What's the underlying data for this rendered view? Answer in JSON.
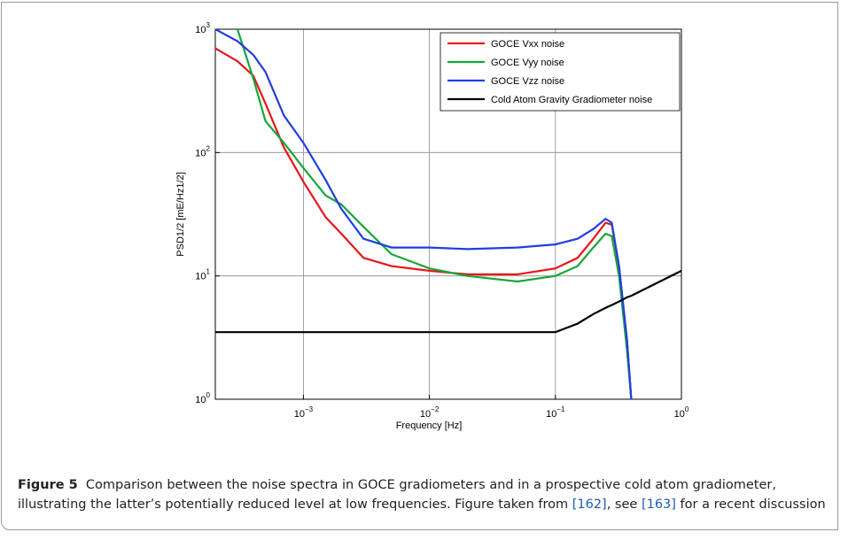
{
  "chart_data": {
    "type": "line",
    "x_label": "Frequency [Hz]",
    "y_label": "PSD1/2 [mE/Hz1/2]",
    "log_x": true,
    "log_y": true,
    "grid": true,
    "legend": "upper right",
    "xlim": [
      0.0002,
      1
    ],
    "ylim": [
      1,
      1000
    ],
    "xticks": [
      {
        "value": 0.001,
        "label": "10",
        "exponent": "−3"
      },
      {
        "value": 0.01,
        "label": "10",
        "exponent": "−2"
      },
      {
        "value": 0.1,
        "label": "10",
        "exponent": "−1"
      },
      {
        "value": 1,
        "label": "10",
        "exponent": "0"
      }
    ],
    "yticks": [
      {
        "value": 1,
        "label": "10",
        "exponent": "0"
      },
      {
        "value": 10,
        "label": "10",
        "exponent": "1"
      },
      {
        "value": 100,
        "label": "10",
        "exponent": "2"
      },
      {
        "value": 1000,
        "label": "10",
        "exponent": "3"
      }
    ],
    "x": [
      0.0002,
      0.0003,
      0.0004,
      0.0005,
      0.0007,
      0.001,
      0.0015,
      0.002,
      0.003,
      0.005,
      0.01,
      0.02,
      0.05,
      0.1,
      0.15,
      0.2,
      0.25,
      0.28,
      0.32,
      0.37,
      0.4,
      1
    ],
    "series": [
      {
        "name": "GOCE Vxx noise",
        "color": "#e8151b",
        "values": [
          700,
          550,
          420,
          250,
          110,
          58,
          30,
          22,
          14,
          12,
          11,
          10.3,
          10.3,
          11.5,
          14,
          20,
          27,
          26,
          12,
          3,
          1,
          null
        ]
      },
      {
        "name": "GOCE Vyy noise",
        "color": "#17a638",
        "values": [
          null,
          1000,
          400,
          180,
          120,
          75,
          45,
          38,
          25,
          15,
          11.5,
          10,
          9,
          10,
          12,
          17,
          22,
          21,
          10,
          2.5,
          1,
          null
        ]
      },
      {
        "name": "GOCE Vzz noise",
        "color": "#1f3fe0",
        "values": [
          1000,
          800,
          620,
          450,
          200,
          120,
          60,
          35,
          20,
          17,
          17,
          16.5,
          17,
          18,
          20,
          24,
          29,
          27,
          12,
          3,
          1,
          null
        ]
      },
      {
        "name": "Cold Atom Gravity Gradiometer noise",
        "color": "#000000",
        "values": [
          3.5,
          3.5,
          3.5,
          3.5,
          3.5,
          3.5,
          3.5,
          3.5,
          3.5,
          3.5,
          3.5,
          3.5,
          3.5,
          3.5,
          4.1,
          4.9,
          5.5,
          5.8,
          6.2,
          6.7,
          6.9,
          11
        ]
      }
    ]
  },
  "caption": {
    "label": "Figure 5",
    "text": "Comparison between the noise spectra in GOCE gradiometers and in a prospective cold atom gradiometer, illustrating the latter’s potentially reduced level at low frequencies. Figure taken from ",
    "ref1": "[162]",
    "mid": ", see ",
    "ref2": "[163]",
    "end": " for a recent discussion"
  }
}
